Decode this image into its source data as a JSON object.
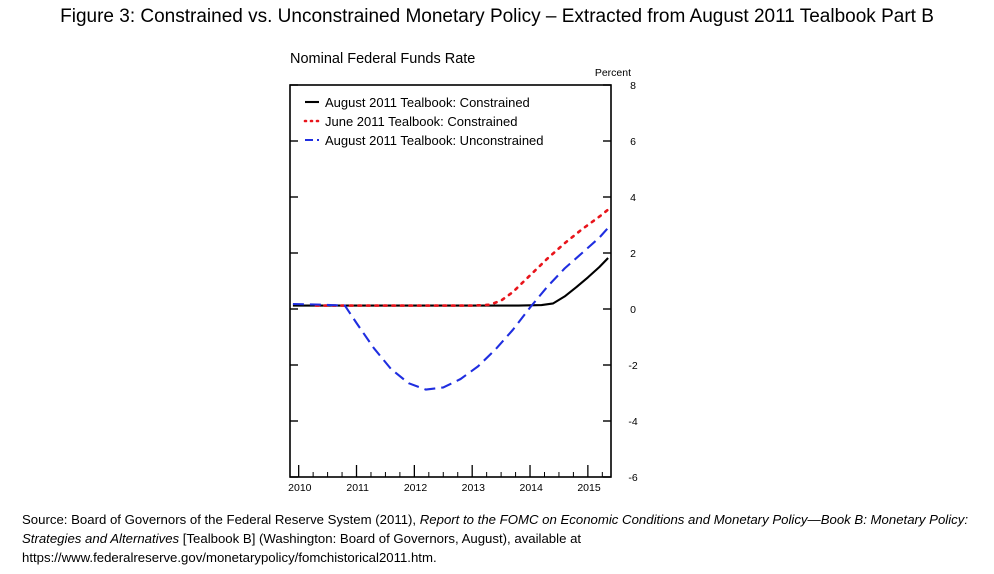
{
  "figure_title": "Figure 3:  Constrained vs. Unconstrained Monetary Policy – Extracted from August 2011 Tealbook Part B",
  "source": {
    "prefix": "Source: Board of Governors of the Federal Reserve System (2011), ",
    "report_title": "Report to the FOMC on Economic Conditions and Monetary Policy—Book B: Monetary Policy: Strategies and Alternatives",
    "suffix": " [Tealbook B] (Washington: Board of Governors, August), available at https://www.federalreserve.gov/monetarypolicy/fomchistorical2011.htm."
  },
  "colors": {
    "black": "#000000",
    "red": "#e8141b",
    "blue": "#1f2ee0"
  },
  "chart_data": {
    "type": "line",
    "title": "Nominal Federal Funds Rate",
    "ylabel": "Percent",
    "xlabel": "",
    "xlim": [
      2009.85,
      2015.4
    ],
    "ylim": [
      -6,
      8
    ],
    "yticks": [
      -6,
      -4,
      -2,
      0,
      2,
      4,
      6,
      8
    ],
    "xticks": [
      2010,
      2011,
      2012,
      2013,
      2014,
      2015
    ],
    "legend_position": "top-left",
    "series": [
      {
        "name": "August 2011 Tealbook: Constrained",
        "style": "solid",
        "color": "#000000",
        "x": [
          2009.9,
          2010.5,
          2011.0,
          2012.0,
          2013.0,
          2013.8,
          2014.2,
          2014.4,
          2014.6,
          2014.8,
          2015.0,
          2015.2,
          2015.35
        ],
        "y": [
          0.12,
          0.12,
          0.12,
          0.12,
          0.12,
          0.12,
          0.14,
          0.2,
          0.45,
          0.78,
          1.13,
          1.5,
          1.82
        ]
      },
      {
        "name": "June 2011 Tealbook: Constrained",
        "style": "dotted",
        "color": "#e8141b",
        "x": [
          2010.3,
          2011.0,
          2012.0,
          2013.0,
          2013.3,
          2013.5,
          2013.7,
          2014.0,
          2014.3,
          2014.6,
          2014.9,
          2015.2,
          2015.35
        ],
        "y": [
          0.12,
          0.12,
          0.12,
          0.12,
          0.15,
          0.3,
          0.6,
          1.2,
          1.8,
          2.35,
          2.85,
          3.3,
          3.55
        ]
      },
      {
        "name": "August 2011 Tealbook: Unconstrained",
        "style": "dashed",
        "color": "#1f2ee0",
        "x": [
          2009.9,
          2010.3,
          2010.8,
          2011.0,
          2011.3,
          2011.6,
          2011.9,
          2012.2,
          2012.5,
          2012.8,
          2013.1,
          2013.4,
          2013.7,
          2014.0,
          2014.3,
          2014.6,
          2014.9,
          2015.2,
          2015.35
        ],
        "y": [
          0.18,
          0.16,
          0.12,
          -0.5,
          -1.4,
          -2.15,
          -2.65,
          -2.88,
          -2.8,
          -2.5,
          -2.05,
          -1.45,
          -0.75,
          0.05,
          0.8,
          1.45,
          2.0,
          2.55,
          2.9
        ]
      }
    ]
  }
}
